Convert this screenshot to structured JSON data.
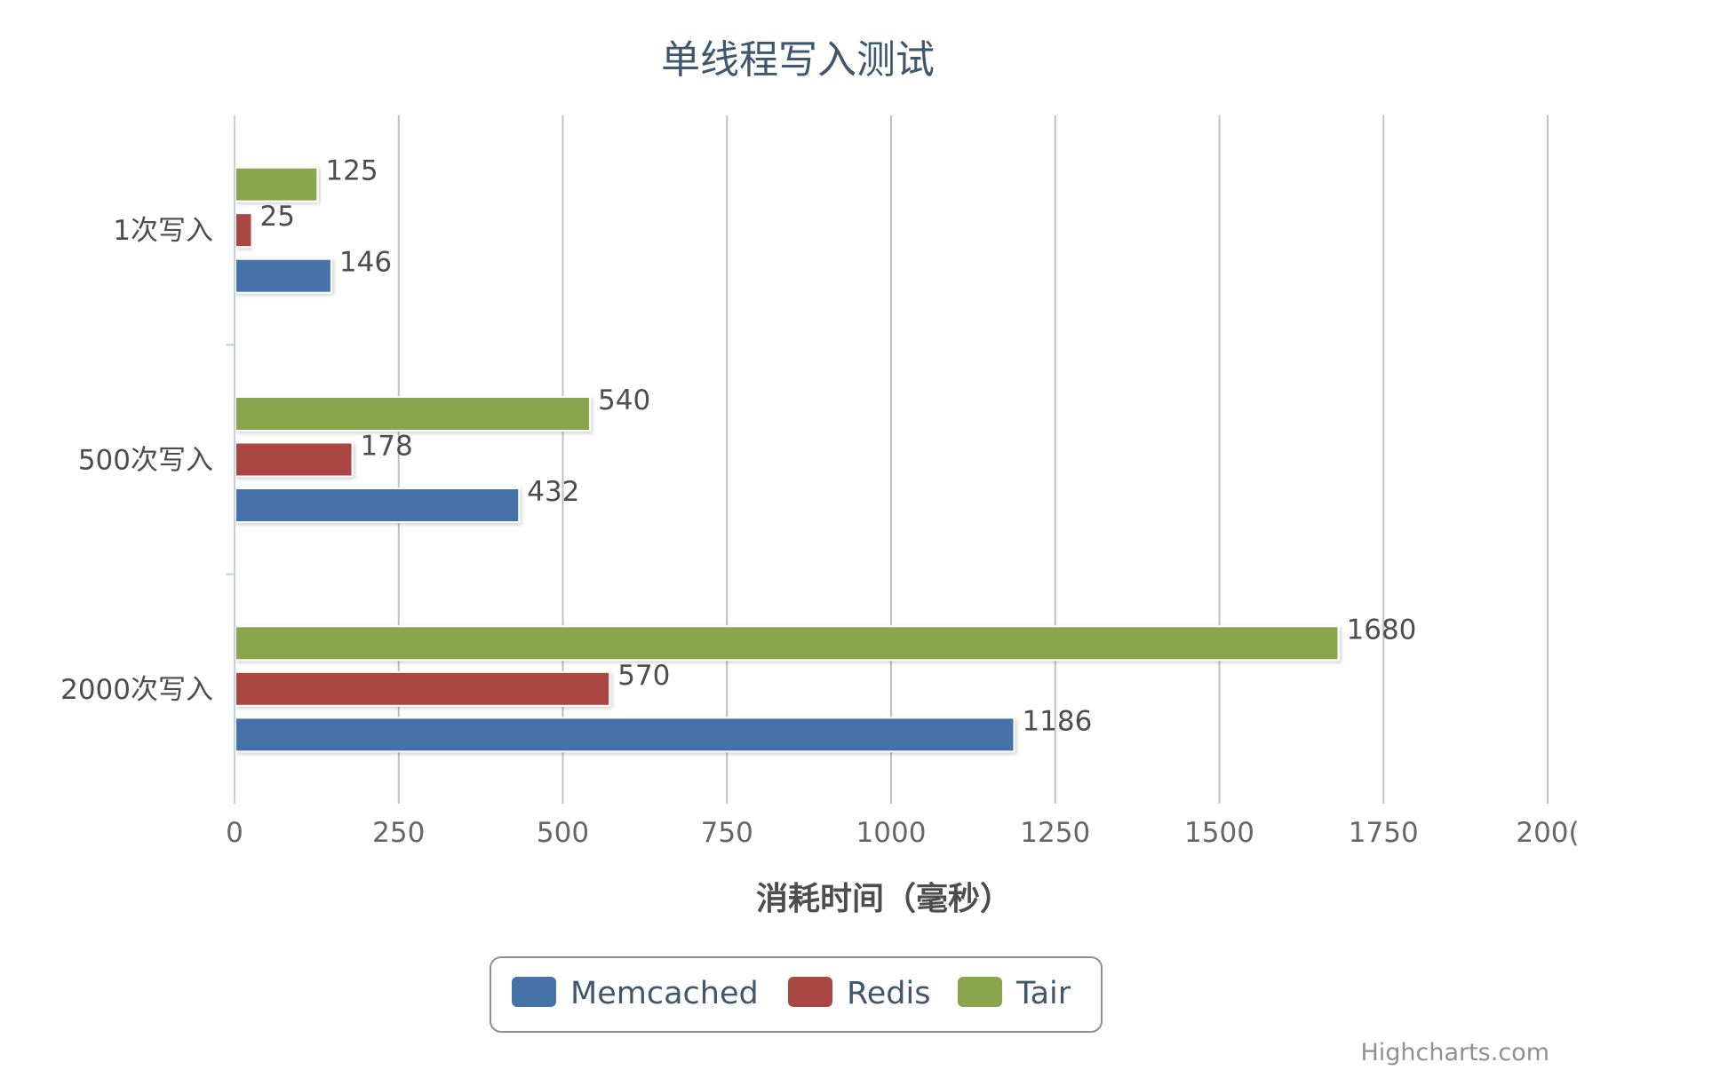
{
  "chart_data": {
    "type": "bar",
    "orientation": "horizontal",
    "title": "单线程写入测试",
    "xlabel": "消耗时间（毫秒）",
    "ylabel": "",
    "categories": [
      "1次写入",
      "500次写入",
      "2000次写入"
    ],
    "series": [
      {
        "name": "Memcached",
        "color": "#4572a7",
        "values": [
          146,
          432,
          1186
        ]
      },
      {
        "name": "Redis",
        "color": "#aa4643",
        "values": [
          25,
          178,
          570
        ]
      },
      {
        "name": "Tair",
        "color": "#89a54e",
        "values": [
          125,
          540,
          1680
        ]
      }
    ],
    "xlim": [
      0,
      2000
    ],
    "ticks": [
      "0",
      "250",
      "500",
      "750",
      "1000",
      "1250",
      "1500",
      "1750",
      "200("
    ],
    "grid": true,
    "legend_position": "bottom-center",
    "data_labels": true
  },
  "credits": "Highcharts.com"
}
